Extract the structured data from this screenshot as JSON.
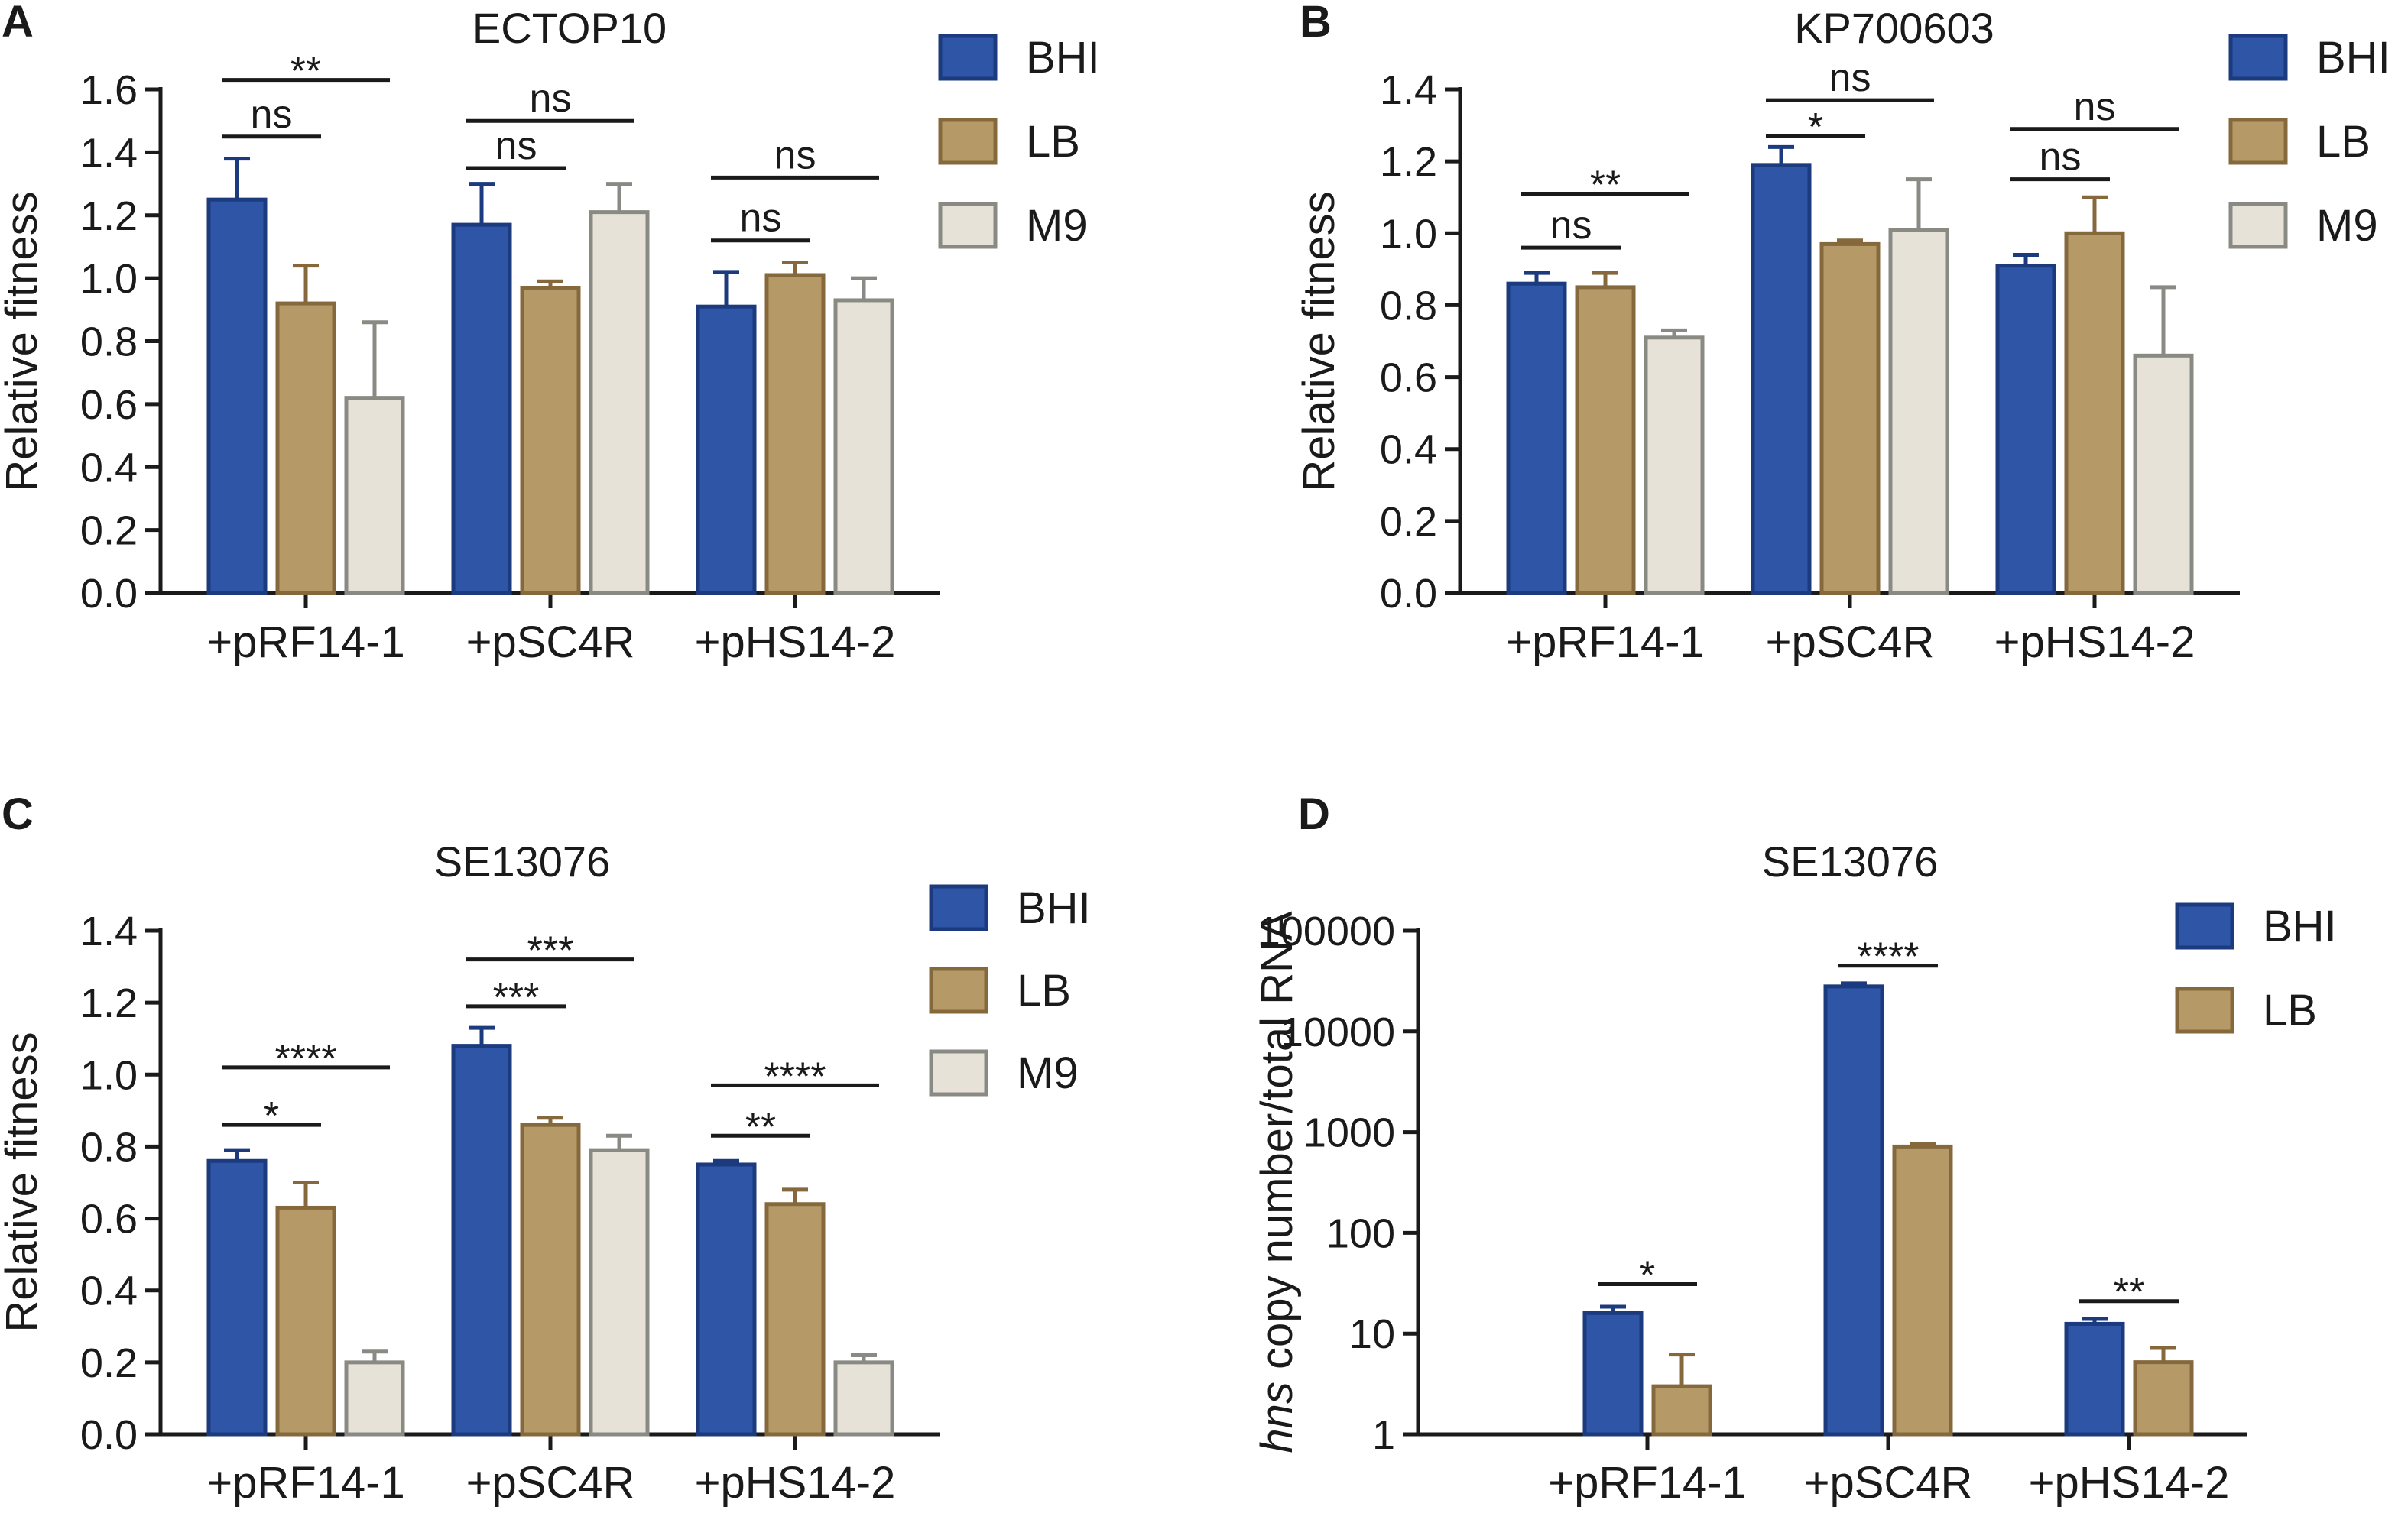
{
  "figure": {
    "background": "#ffffff"
  },
  "colors": {
    "BHI": {
      "fill": "#2e55a6",
      "stroke": "#1c3a7e"
    },
    "LB": {
      "fill": "#b59a68",
      "stroke": "#85693d"
    },
    "M9": {
      "fill": "#e6e2d8",
      "stroke": "#8a8a84"
    }
  },
  "chart_data": [
    {
      "panel": "A",
      "type": "bar",
      "title": "ECTOP10",
      "ylabel": "Relative fitness",
      "yscale": "linear",
      "ylim": [
        0,
        1.6
      ],
      "yticks": [
        0.0,
        0.2,
        0.4,
        0.6,
        0.8,
        1.0,
        1.2,
        1.4,
        1.6
      ],
      "ytick_labels": [
        "0.0",
        "0.2",
        "0.4",
        "0.6",
        "0.8",
        "1.0",
        "1.2",
        "1.4",
        "1.6"
      ],
      "categories": [
        "+pRF14-1",
        "+pSC4R",
        "+pHS14-2"
      ],
      "legend": [
        "BHI",
        "LB",
        "M9"
      ],
      "series": [
        {
          "name": "BHI",
          "values": [
            1.25,
            1.17,
            0.91
          ],
          "errors": [
            0.13,
            0.13,
            0.11
          ]
        },
        {
          "name": "LB",
          "values": [
            0.92,
            0.97,
            1.01
          ],
          "errors": [
            0.12,
            0.02,
            0.04
          ]
        },
        {
          "name": "M9",
          "values": [
            0.62,
            1.21,
            0.93
          ],
          "errors": [
            0.24,
            0.09,
            0.07
          ]
        }
      ],
      "annotations": [
        {
          "text": "**",
          "group": 0,
          "from": 0,
          "to": 2,
          "level": 1.63
        },
        {
          "text": "ns",
          "group": 0,
          "from": 0,
          "to": 1,
          "level": 1.45
        },
        {
          "text": "ns",
          "group": 1,
          "from": 0,
          "to": 2,
          "level": 1.5
        },
        {
          "text": "ns",
          "group": 1,
          "from": 0,
          "to": 1,
          "level": 1.35
        },
        {
          "text": "ns",
          "group": 2,
          "from": 0,
          "to": 2,
          "level": 1.32
        },
        {
          "text": "ns",
          "group": 2,
          "from": 0,
          "to": 1,
          "level": 1.12
        }
      ]
    },
    {
      "panel": "B",
      "type": "bar",
      "title": "KP700603",
      "ylabel": "Relative fitness",
      "yscale": "linear",
      "ylim": [
        0,
        1.4
      ],
      "yticks": [
        0.0,
        0.2,
        0.4,
        0.6,
        0.8,
        1.0,
        1.2,
        1.4
      ],
      "ytick_labels": [
        "0.0",
        "0.2",
        "0.4",
        "0.6",
        "0.8",
        "1.0",
        "1.2",
        "1.4"
      ],
      "categories": [
        "+pRF14-1",
        "+pSC4R",
        "+pHS14-2"
      ],
      "legend": [
        "BHI",
        "LB",
        "M9"
      ],
      "series": [
        {
          "name": "BHI",
          "values": [
            0.86,
            1.19,
            0.91
          ],
          "errors": [
            0.03,
            0.05,
            0.03
          ]
        },
        {
          "name": "LB",
          "values": [
            0.85,
            0.97,
            1.0
          ],
          "errors": [
            0.04,
            0.01,
            0.1
          ]
        },
        {
          "name": "M9",
          "values": [
            0.71,
            1.01,
            0.66
          ],
          "errors": [
            0.02,
            0.14,
            0.19
          ]
        }
      ],
      "annotations": [
        {
          "text": "**",
          "group": 0,
          "from": 0,
          "to": 2,
          "level": 1.11
        },
        {
          "text": "ns",
          "group": 0,
          "from": 0,
          "to": 1,
          "level": 0.96
        },
        {
          "text": "ns",
          "group": 1,
          "from": 0,
          "to": 2,
          "level": 1.37
        },
        {
          "text": "*",
          "group": 1,
          "from": 0,
          "to": 1,
          "level": 1.27
        },
        {
          "text": "ns",
          "group": 2,
          "from": 0,
          "to": 2,
          "level": 1.29
        },
        {
          "text": "ns",
          "group": 2,
          "from": 0,
          "to": 1,
          "level": 1.15
        }
      ]
    },
    {
      "panel": "C",
      "type": "bar",
      "title": "SE13076",
      "ylabel": "Relative fitness",
      "yscale": "linear",
      "ylim": [
        0,
        1.4
      ],
      "yticks": [
        0.0,
        0.2,
        0.4,
        0.6,
        0.8,
        1.0,
        1.2,
        1.4
      ],
      "ytick_labels": [
        "0.0",
        "0.2",
        "0.4",
        "0.6",
        "0.8",
        "1.0",
        "1.2",
        "1.4"
      ],
      "categories": [
        "+pRF14-1",
        "+pSC4R",
        "+pHS14-2"
      ],
      "legend": [
        "BHI",
        "LB",
        "M9"
      ],
      "series": [
        {
          "name": "BHI",
          "values": [
            0.76,
            1.08,
            0.75
          ],
          "errors": [
            0.03,
            0.05,
            0.01
          ]
        },
        {
          "name": "LB",
          "values": [
            0.63,
            0.86,
            0.64
          ],
          "errors": [
            0.07,
            0.02,
            0.04
          ]
        },
        {
          "name": "M9",
          "values": [
            0.2,
            0.79,
            0.2
          ],
          "errors": [
            0.03,
            0.04,
            0.02
          ]
        }
      ],
      "annotations": [
        {
          "text": "****",
          "group": 0,
          "from": 0,
          "to": 2,
          "level": 1.02
        },
        {
          "text": "*",
          "group": 0,
          "from": 0,
          "to": 1,
          "level": 0.86
        },
        {
          "text": "***",
          "group": 1,
          "from": 0,
          "to": 2,
          "level": 1.32
        },
        {
          "text": "***",
          "group": 1,
          "from": 0,
          "to": 1,
          "level": 1.19
        },
        {
          "text": "****",
          "group": 2,
          "from": 0,
          "to": 2,
          "level": 0.97
        },
        {
          "text": "**",
          "group": 2,
          "from": 0,
          "to": 1,
          "level": 0.83
        }
      ]
    },
    {
      "panel": "D",
      "type": "bar",
      "title": "SE13076",
      "ylabel_italic": "hns",
      "ylabel_rest": " copy number/total RNA",
      "yscale": "log",
      "ylim": [
        1,
        100000
      ],
      "yticks": [
        1,
        10,
        100,
        1000,
        10000,
        100000
      ],
      "ytick_labels": [
        "1",
        "10",
        "100",
        "1000",
        "10000",
        "100000"
      ],
      "categories": [
        "+pRF14-1",
        "+pSC4R",
        "+pHS14-2"
      ],
      "legend": [
        "BHI",
        "LB"
      ],
      "series": [
        {
          "name": "BHI",
          "values": [
            16,
            28000,
            12.5
          ],
          "errors_top": [
            18.5,
            30000,
            14
          ]
        },
        {
          "name": "LB",
          "values": [
            3,
            720,
            5.2
          ],
          "errors_top": [
            6.2,
            770,
            7.2
          ]
        }
      ],
      "annotations": [
        {
          "text": "*",
          "group": 0,
          "from": 0,
          "to": 1,
          "level": 31
        },
        {
          "text": "****",
          "group": 1,
          "from": 0,
          "to": 1,
          "level": 45000
        },
        {
          "text": "**",
          "group": 2,
          "from": 0,
          "to": 1,
          "level": 21
        }
      ]
    }
  ]
}
